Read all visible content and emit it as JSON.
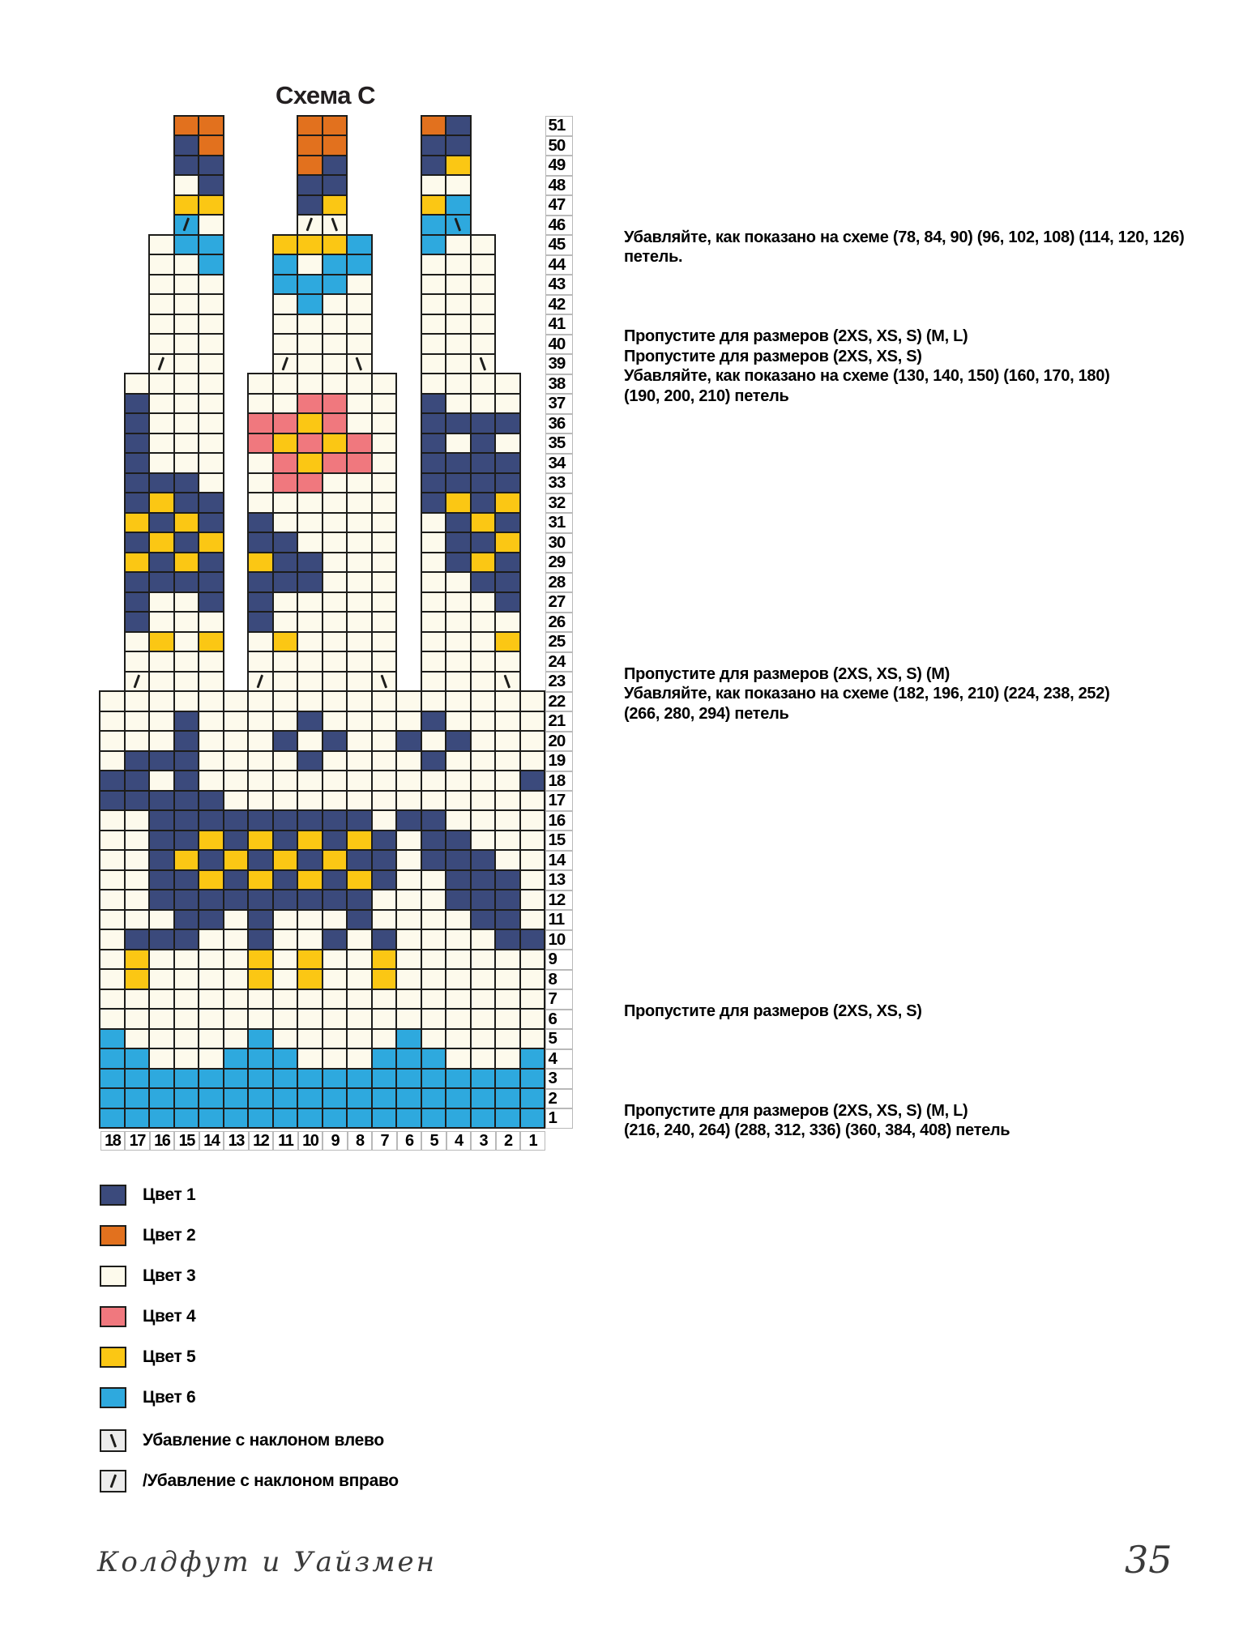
{
  "title": "Схема C",
  "palette": {
    "c1": "#3b4a7c",
    "c2": "#e2711e",
    "c3": "#fdfaec",
    "c4": "#f0787e",
    "c5": "#fbc714",
    "c6": "#2ea9de",
    "grid": "#1d1d1b"
  },
  "chart": {
    "columns": 18,
    "col_labels": [
      "18",
      "17",
      "16",
      "15",
      "14",
      "13",
      "12",
      "11",
      "10",
      "9",
      "8",
      "7",
      "6",
      "5",
      "4",
      "3",
      "2",
      "1"
    ],
    "row_numbers_top_to_bottom": 51,
    "cell_legend": "digits 1-6 = Цвет 1-6; r = right-leaning decrease on Цвет 3; l = left-leaning decrease on Цвет 3; R = right-leaning decrease on Цвет 6; L = left-leaning decrease on Цвет 6",
    "rows": [
      {
        "n": 51,
        "b": [
          {
            "s": 3,
            "c": "22"
          },
          {
            "s": 8,
            "c": "22"
          },
          {
            "s": 13,
            "c": "21"
          }
        ]
      },
      {
        "n": 50,
        "b": [
          {
            "s": 3,
            "c": "12"
          },
          {
            "s": 8,
            "c": "22"
          },
          {
            "s": 13,
            "c": "11"
          }
        ]
      },
      {
        "n": 49,
        "b": [
          {
            "s": 3,
            "c": "11"
          },
          {
            "s": 8,
            "c": "21"
          },
          {
            "s": 13,
            "c": "15"
          }
        ]
      },
      {
        "n": 48,
        "b": [
          {
            "s": 3,
            "c": "31"
          },
          {
            "s": 8,
            "c": "11"
          },
          {
            "s": 13,
            "c": "33"
          }
        ]
      },
      {
        "n": 47,
        "b": [
          {
            "s": 3,
            "c": "55"
          },
          {
            "s": 8,
            "c": "15"
          },
          {
            "s": 13,
            "c": "56"
          }
        ]
      },
      {
        "n": 46,
        "b": [
          {
            "s": 3,
            "c": "R3"
          },
          {
            "s": 8,
            "c": "rl"
          },
          {
            "s": 13,
            "c": "6L"
          }
        ]
      },
      {
        "n": 45,
        "b": [
          {
            "s": 2,
            "c": "366"
          },
          {
            "s": 7,
            "c": "5556"
          },
          {
            "s": 13,
            "c": "633"
          }
        ]
      },
      {
        "n": 44,
        "b": [
          {
            "s": 2,
            "c": "336"
          },
          {
            "s": 7,
            "c": "6366"
          },
          {
            "s": 13,
            "c": "333"
          }
        ]
      },
      {
        "n": 43,
        "b": [
          {
            "s": 2,
            "c": "333"
          },
          {
            "s": 7,
            "c": "6663"
          },
          {
            "s": 13,
            "c": "333"
          }
        ]
      },
      {
        "n": 42,
        "b": [
          {
            "s": 2,
            "c": "333"
          },
          {
            "s": 7,
            "c": "3633"
          },
          {
            "s": 13,
            "c": "333"
          }
        ]
      },
      {
        "n": 41,
        "b": [
          {
            "s": 2,
            "c": "333"
          },
          {
            "s": 7,
            "c": "3333"
          },
          {
            "s": 13,
            "c": "333"
          }
        ]
      },
      {
        "n": 40,
        "b": [
          {
            "s": 2,
            "c": "333"
          },
          {
            "s": 7,
            "c": "3333"
          },
          {
            "s": 13,
            "c": "333"
          }
        ]
      },
      {
        "n": 39,
        "b": [
          {
            "s": 2,
            "c": "r33"
          },
          {
            "s": 7,
            "c": "r33l"
          },
          {
            "s": 13,
            "c": "33l"
          }
        ]
      },
      {
        "n": 38,
        "b": [
          {
            "s": 1,
            "c": "3333"
          },
          {
            "s": 6,
            "c": "333333"
          },
          {
            "s": 13,
            "c": "3333"
          }
        ]
      },
      {
        "n": 37,
        "b": [
          {
            "s": 1,
            "c": "1333"
          },
          {
            "s": 6,
            "c": "334433"
          },
          {
            "s": 13,
            "c": "1333"
          }
        ]
      },
      {
        "n": 36,
        "b": [
          {
            "s": 1,
            "c": "1333"
          },
          {
            "s": 6,
            "c": "445433"
          },
          {
            "s": 13,
            "c": "1111"
          }
        ]
      },
      {
        "n": 35,
        "b": [
          {
            "s": 1,
            "c": "1333"
          },
          {
            "s": 6,
            "c": "454543"
          },
          {
            "s": 13,
            "c": "1313"
          }
        ]
      },
      {
        "n": 34,
        "b": [
          {
            "s": 1,
            "c": "1333"
          },
          {
            "s": 6,
            "c": "345443"
          },
          {
            "s": 13,
            "c": "1111"
          }
        ]
      },
      {
        "n": 33,
        "b": [
          {
            "s": 1,
            "c": "1113"
          },
          {
            "s": 6,
            "c": "344333"
          },
          {
            "s": 13,
            "c": "1111"
          }
        ]
      },
      {
        "n": 32,
        "b": [
          {
            "s": 1,
            "c": "1511"
          },
          {
            "s": 6,
            "c": "333333"
          },
          {
            "s": 13,
            "c": "1515"
          }
        ]
      },
      {
        "n": 31,
        "b": [
          {
            "s": 1,
            "c": "5151"
          },
          {
            "s": 6,
            "c": "133333"
          },
          {
            "s": 13,
            "c": "3151"
          }
        ]
      },
      {
        "n": 30,
        "b": [
          {
            "s": 1,
            "c": "1515"
          },
          {
            "s": 6,
            "c": "113333"
          },
          {
            "s": 13,
            "c": "3115"
          }
        ]
      },
      {
        "n": 29,
        "b": [
          {
            "s": 1,
            "c": "5151"
          },
          {
            "s": 6,
            "c": "511333"
          },
          {
            "s": 13,
            "c": "3151"
          }
        ]
      },
      {
        "n": 28,
        "b": [
          {
            "s": 1,
            "c": "1111"
          },
          {
            "s": 6,
            "c": "111333"
          },
          {
            "s": 13,
            "c": "3311"
          }
        ]
      },
      {
        "n": 27,
        "b": [
          {
            "s": 1,
            "c": "1331"
          },
          {
            "s": 6,
            "c": "133333"
          },
          {
            "s": 13,
            "c": "3331"
          }
        ]
      },
      {
        "n": 26,
        "b": [
          {
            "s": 1,
            "c": "1333"
          },
          {
            "s": 6,
            "c": "133333"
          },
          {
            "s": 13,
            "c": "3333"
          }
        ]
      },
      {
        "n": 25,
        "b": [
          {
            "s": 1,
            "c": "3535"
          },
          {
            "s": 6,
            "c": "353333"
          },
          {
            "s": 13,
            "c": "3335"
          }
        ]
      },
      {
        "n": 24,
        "b": [
          {
            "s": 1,
            "c": "3333"
          },
          {
            "s": 6,
            "c": "333333"
          },
          {
            "s": 13,
            "c": "3333"
          }
        ]
      },
      {
        "n": 23,
        "b": [
          {
            "s": 1,
            "c": "r333"
          },
          {
            "s": 6,
            "c": "r3333l"
          },
          {
            "s": 13,
            "c": "333l"
          }
        ]
      },
      {
        "n": 22,
        "b": [
          {
            "s": 0,
            "c": "333333333333333333"
          }
        ]
      },
      {
        "n": 21,
        "b": [
          {
            "s": 0,
            "c": "333133331333313333"
          }
        ]
      },
      {
        "n": 20,
        "b": [
          {
            "s": 0,
            "c": "333133313133131333"
          }
        ]
      },
      {
        "n": 19,
        "b": [
          {
            "s": 0,
            "c": "311133331333313333"
          }
        ]
      },
      {
        "n": 18,
        "b": [
          {
            "s": 0,
            "c": "113133333333333331"
          }
        ]
      },
      {
        "n": 17,
        "b": [
          {
            "s": 0,
            "c": "111113333333333333"
          }
        ]
      },
      {
        "n": 16,
        "b": [
          {
            "s": 0,
            "c": "331111111113113333"
          }
        ]
      },
      {
        "n": 15,
        "b": [
          {
            "s": 0,
            "c": "331151515151311333"
          }
        ]
      },
      {
        "n": 14,
        "b": [
          {
            "s": 0,
            "c": "331515151511311133"
          }
        ]
      },
      {
        "n": 13,
        "b": [
          {
            "s": 0,
            "c": "331151515151331113"
          }
        ]
      },
      {
        "n": 12,
        "b": [
          {
            "s": 0,
            "c": "331111111113331113"
          }
        ]
      },
      {
        "n": 11,
        "b": [
          {
            "s": 0,
            "c": "333113133313333113"
          }
        ]
      },
      {
        "n": 10,
        "b": [
          {
            "s": 0,
            "c": "311133133131333311"
          }
        ]
      },
      {
        "n": 9,
        "b": [
          {
            "s": 0,
            "c": "353333535335333333"
          }
        ]
      },
      {
        "n": 8,
        "b": [
          {
            "s": 0,
            "c": "353333535335333333"
          }
        ]
      },
      {
        "n": 7,
        "b": [
          {
            "s": 0,
            "c": "333333333333333333"
          }
        ]
      },
      {
        "n": 6,
        "b": [
          {
            "s": 0,
            "c": "333333333333333333"
          }
        ]
      },
      {
        "n": 5,
        "b": [
          {
            "s": 0,
            "c": "633333633333633333"
          }
        ]
      },
      {
        "n": 4,
        "b": [
          {
            "s": 0,
            "c": "663336663336663336"
          }
        ]
      },
      {
        "n": 3,
        "b": [
          {
            "s": 0,
            "c": "666666666666666666"
          }
        ]
      },
      {
        "n": 2,
        "b": [
          {
            "s": 0,
            "c": "666666666666666666"
          }
        ]
      },
      {
        "n": 1,
        "b": [
          {
            "s": 0,
            "c": "666666666666666666"
          }
        ]
      }
    ]
  },
  "annotations": [
    {
      "row": 46,
      "lines": [
        "Убавляйте, как показано на схеме (78, 84, 90) (96, 102, 108) (114, 120, 126)",
        "петель."
      ]
    },
    {
      "row": 41,
      "lines": [
        "Пропустите для размеров (2XS, XS, S) (M, L)",
        "Пропустите для размеров (2XS, XS, S)",
        "Убавляйте, как показано на схеме (130, 140, 150) (160, 170, 180)",
        "(190, 200, 210) петель"
      ]
    },
    {
      "row": 24,
      "lines": [
        "Пропустите для размеров (2XS, XS, S) (M)",
        "Убавляйте, как показано на схеме (182, 196, 210) (224, 238, 252)",
        "(266, 280, 294) петель"
      ]
    },
    {
      "row": 7,
      "lines": [
        "Пропустите для размеров (2XS, XS, S)"
      ]
    },
    {
      "row": 2,
      "lines": [
        "Пропустите для размеров (2XS, XS, S) (M, L)",
        "(216, 240, 264) (288, 312, 336) (360, 384, 408) петель"
      ]
    }
  ],
  "legend": {
    "colors": [
      {
        "key": "c1",
        "label": "Цвет 1"
      },
      {
        "key": "c2",
        "label": "Цвет 2"
      },
      {
        "key": "c3",
        "label": "Цвет 3"
      },
      {
        "key": "c4",
        "label": "Цвет 4"
      },
      {
        "key": "c5",
        "label": "Цвет 5"
      },
      {
        "key": "c6",
        "label": "Цвет 6"
      }
    ],
    "symbols": [
      {
        "sym": "l",
        "label": "Убавление с наклоном влево"
      },
      {
        "sym": "r",
        "label": "/Убавление с наклоном вправо"
      }
    ]
  },
  "footer": {
    "left": "Колдфут и Уайзмен",
    "page": "35"
  }
}
